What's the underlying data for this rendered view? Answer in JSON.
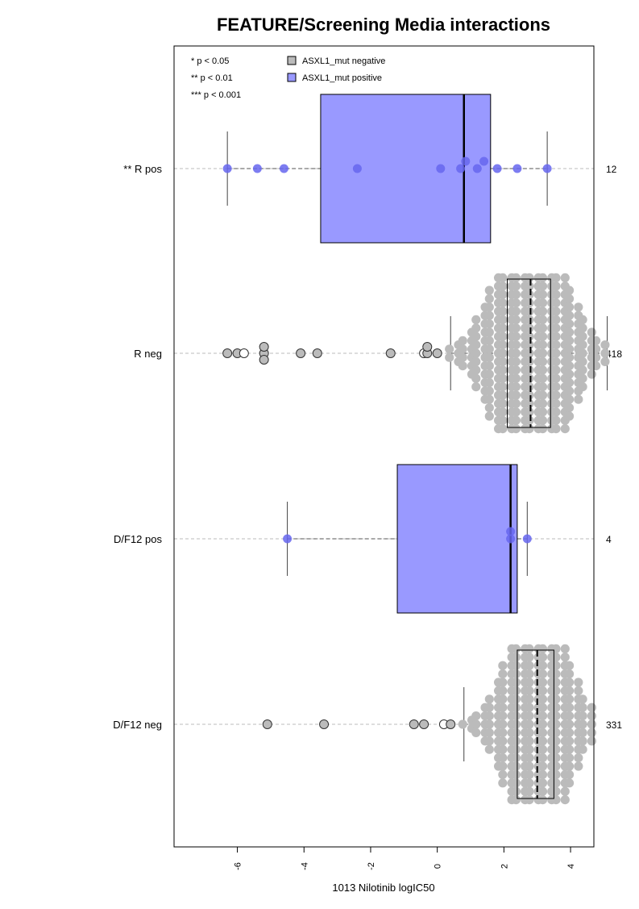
{
  "chart_data": {
    "type": "boxplot",
    "title": "FEATURE/Screening Media interactions",
    "xlabel": "1013 Nilotinib logIC50",
    "xlim": [
      -7.9,
      4.7
    ],
    "xticks": [
      -6,
      -4,
      -2,
      0,
      2,
      4
    ],
    "xtick_labels": [
      "-6",
      "-4",
      "-2",
      "0",
      "2",
      "4"
    ],
    "orientation": "horizontal",
    "grid": false,
    "significance_legend": [
      "* p < 0.05",
      "** p < 0.01",
      "*** p < 0.001"
    ],
    "legend": {
      "placement": "top-left",
      "entries": [
        {
          "label": "ASXL1_mut negative",
          "color": "#bbbbbb"
        },
        {
          "label": "ASXL1_mut positive",
          "color": "#9999ff"
        }
      ]
    },
    "groups": [
      {
        "label": "** R pos",
        "count_label": "12",
        "n": 12,
        "mutation": "positive",
        "box_color": "#9999ff",
        "point_color": "#6666ee",
        "whisker_low": -6.3,
        "q1": -3.5,
        "median": 0.8,
        "q3": 1.6,
        "whisker_high": 3.3,
        "points": [
          -6.3,
          -5.4,
          -4.6,
          -2.4,
          0.1,
          0.7,
          0.85,
          1.2,
          1.4,
          1.8,
          2.4,
          3.3
        ]
      },
      {
        "label": "R neg",
        "count_label": "418",
        "n": 418,
        "mutation": "negative",
        "box_color": "#bbbbbb",
        "point_color": "#bbbbbb",
        "whisker_low": 0.4,
        "q1": 2.1,
        "median": 2.8,
        "q3": 3.4,
        "whisker_high": 5.1,
        "outliers": [
          -6.3,
          -6.0,
          -5.8,
          -5.2,
          -5.2,
          -5.2,
          -4.1,
          -3.6,
          -1.4,
          -0.4,
          -0.3,
          -0.3,
          0.0
        ],
        "open_outliers": [
          -5.8,
          -0.4
        ],
        "dense_range": [
          0.4,
          5.1
        ],
        "dense_count": 405
      },
      {
        "label": "D/F12 pos",
        "count_label": "4",
        "n": 4,
        "mutation": "positive",
        "box_color": "#9999ff",
        "point_color": "#6666ee",
        "whisker_low": -4.5,
        "q1": -1.2,
        "median": 2.2,
        "q3": 2.4,
        "whisker_high": 2.7,
        "points": [
          -4.5,
          2.2,
          2.2,
          2.7
        ]
      },
      {
        "label": "D/F12 neg",
        "count_label": "331",
        "n": 331,
        "mutation": "negative",
        "box_color": "#bbbbbb",
        "point_color": "#bbbbbb",
        "whisker_low": 0.8,
        "q1": 2.4,
        "median": 3.0,
        "q3": 3.5,
        "whisker_high": 4.7,
        "outliers": [
          -5.1,
          -3.4,
          -0.7,
          -0.4,
          0.2,
          0.4
        ],
        "open_outliers": [
          0.2
        ],
        "dense_range": [
          0.8,
          4.7
        ],
        "dense_count": 325
      }
    ]
  }
}
